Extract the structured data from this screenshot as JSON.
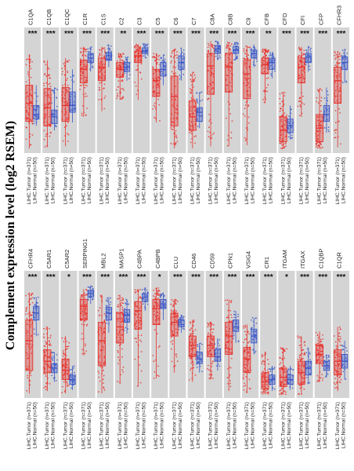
{
  "ylabel": "Complement expression level (log2 RSEM)",
  "colors": {
    "tumor": "#e8302a",
    "normal": "#3a57c8",
    "panel": "#d4d4d4"
  },
  "chart_data": {
    "type": "box",
    "ylabel": "Complement expression level (log2 RSEM)",
    "group_labels": [
      "LIHC.Tumor (n=371)",
      "LIHC.Normal (n=50)"
    ],
    "rows": [
      {
        "panels": [
          {
            "gene": "C1QA",
            "sig": "***",
            "tumor": [
              0.26,
              0.42,
              0.58,
              0.85,
              0.02
            ],
            "normal": [
              0.28,
              0.32,
              0.4,
              0.58,
              0.22
            ]
          },
          {
            "gene": "C1QB",
            "sig": "***",
            "tumor": [
              0.22,
              0.38,
              0.55,
              0.8,
              0.03
            ],
            "normal": [
              0.24,
              0.3,
              0.36,
              0.56,
              0.18
            ]
          },
          {
            "gene": "C1QC",
            "sig": "***",
            "tumor": [
              0.26,
              0.4,
              0.56,
              0.82,
              0.04
            ],
            "normal": [
              0.34,
              0.4,
              0.52,
              0.72,
              0.25
            ]
          },
          {
            "gene": "C1R",
            "sig": "***",
            "tumor": [
              0.6,
              0.72,
              0.8,
              0.92,
              0.3
            ],
            "normal": [
              0.78,
              0.82,
              0.86,
              0.92,
              0.7
            ]
          },
          {
            "gene": "C1S",
            "sig": "***",
            "tumor": [
              0.62,
              0.74,
              0.82,
              0.92,
              0.35
            ],
            "normal": [
              0.8,
              0.84,
              0.87,
              0.94,
              0.74
            ]
          },
          {
            "gene": "C2",
            "sig": "**",
            "tumor": [
              0.65,
              0.72,
              0.78,
              0.86,
              0.45
            ],
            "normal": [
              0.7,
              0.74,
              0.78,
              0.83,
              0.62
            ]
          },
          {
            "gene": "C3",
            "sig": "***",
            "tumor": [
              0.78,
              0.84,
              0.88,
              0.94,
              0.45
            ],
            "normal": [
              0.86,
              0.88,
              0.91,
              0.95,
              0.82
            ]
          },
          {
            "gene": "C5",
            "sig": "***",
            "tumor": [
              0.48,
              0.62,
              0.72,
              0.86,
              0.25
            ],
            "normal": [
              0.66,
              0.72,
              0.78,
              0.85,
              0.58
            ]
          },
          {
            "gene": "C6",
            "sig": "***",
            "tumor": [
              0.22,
              0.48,
              0.66,
              0.9,
              0.02
            ],
            "normal": [
              0.72,
              0.78,
              0.84,
              0.91,
              0.62
            ]
          },
          {
            "gene": "C7",
            "sig": "***",
            "tumor": [
              0.18,
              0.3,
              0.44,
              0.7,
              0.02
            ],
            "normal": [
              0.26,
              0.34,
              0.38,
              0.52,
              0.2
            ]
          },
          {
            "gene": "C8A",
            "sig": "***",
            "tumor": [
              0.5,
              0.75,
              0.86,
              0.97,
              0.04
            ],
            "normal": [
              0.86,
              0.9,
              0.93,
              0.97,
              0.8
            ]
          },
          {
            "gene": "C8B",
            "sig": "***",
            "tumor": [
              0.52,
              0.74,
              0.86,
              0.96,
              0.04
            ],
            "normal": [
              0.86,
              0.89,
              0.92,
              0.96,
              0.8
            ]
          },
          {
            "gene": "C9",
            "sig": "***",
            "tumor": [
              0.46,
              0.68,
              0.8,
              0.93,
              0.05
            ],
            "normal": [
              0.82,
              0.86,
              0.89,
              0.94,
              0.74
            ]
          },
          {
            "gene": "CFB",
            "sig": "**",
            "tumor": [
              0.68,
              0.76,
              0.82,
              0.9,
              0.42
            ],
            "normal": [
              0.72,
              0.78,
              0.82,
              0.87,
              0.64
            ]
          },
          {
            "gene": "CFD",
            "sig": "***",
            "tumor": [
              0.08,
              0.18,
              0.3,
              0.52,
              0.02
            ],
            "normal": [
              0.16,
              0.22,
              0.28,
              0.4,
              0.1
            ]
          },
          {
            "gene": "CFI",
            "sig": "***",
            "tumor": [
              0.6,
              0.74,
              0.82,
              0.92,
              0.3
            ],
            "normal": [
              0.78,
              0.83,
              0.86,
              0.92,
              0.7
            ]
          },
          {
            "gene": "CFP",
            "sig": "***",
            "tumor": [
              0.08,
              0.2,
              0.32,
              0.55,
              0.02
            ],
            "normal": [
              0.26,
              0.32,
              0.4,
              0.56,
              0.16
            ]
          },
          {
            "gene": "CFHR3",
            "sig": "***",
            "tumor": [
              0.42,
              0.62,
              0.74,
              0.88,
              0.03
            ],
            "normal": [
              0.72,
              0.78,
              0.83,
              0.9,
              0.6
            ]
          }
        ]
      },
      {
        "panels": [
          {
            "gene": "CFHR4",
            "sig": "***",
            "tumor": [
              0.22,
              0.48,
              0.66,
              0.9,
              0.02
            ],
            "normal": [
              0.66,
              0.72,
              0.78,
              0.86,
              0.52
            ]
          },
          {
            "gene": "C5AR1",
            "sig": "***",
            "tumor": [
              0.2,
              0.3,
              0.4,
              0.6,
              0.04
            ],
            "normal": [
              0.2,
              0.24,
              0.28,
              0.38,
              0.12
            ]
          },
          {
            "gene": "C5AR2",
            "sig": "*",
            "tumor": [
              0.14,
              0.22,
              0.32,
              0.52,
              0.02
            ],
            "normal": [
              0.1,
              0.14,
              0.18,
              0.26,
              0.05
            ]
          },
          {
            "gene": "SERPING1",
            "sig": "***",
            "tumor": [
              0.66,
              0.78,
              0.84,
              0.93,
              0.35
            ],
            "normal": [
              0.86,
              0.89,
              0.92,
              0.96,
              0.8
            ]
          },
          {
            "gene": "MBL2",
            "sig": "***",
            "tumor": [
              0.26,
              0.48,
              0.64,
              0.88,
              0.02
            ],
            "normal": [
              0.66,
              0.72,
              0.77,
              0.86,
              0.55
            ]
          },
          {
            "gene": "MASP1",
            "sig": "***",
            "tumor": [
              0.46,
              0.6,
              0.72,
              0.88,
              0.1
            ],
            "normal": [
              0.64,
              0.7,
              0.75,
              0.84,
              0.54
            ]
          },
          {
            "gene": "C4BPA",
            "sig": "***",
            "tumor": [
              0.58,
              0.74,
              0.82,
              0.93,
              0.08
            ],
            "normal": [
              0.82,
              0.86,
              0.89,
              0.94,
              0.74
            ]
          },
          {
            "gene": "C4BPB",
            "sig": "*",
            "tumor": [
              0.62,
              0.76,
              0.84,
              0.94,
              0.15
            ],
            "normal": [
              0.76,
              0.8,
              0.84,
              0.9,
              0.66
            ]
          },
          {
            "gene": "CLU",
            "sig": "***",
            "tumor": [
              0.52,
              0.64,
              0.72,
              0.84,
              0.2
            ],
            "normal": [
              0.6,
              0.62,
              0.66,
              0.7,
              0.55
            ]
          },
          {
            "gene": "CD46",
            "sig": "***",
            "tumor": [
              0.34,
              0.44,
              0.52,
              0.66,
              0.12
            ],
            "normal": [
              0.28,
              0.32,
              0.38,
              0.46,
              0.2
            ]
          },
          {
            "gene": "CD59",
            "sig": "***",
            "tumor": [
              0.34,
              0.44,
              0.52,
              0.64,
              0.14
            ],
            "normal": [
              0.3,
              0.34,
              0.4,
              0.5,
              0.22
            ]
          },
          {
            "gene": "CPN1",
            "sig": "***",
            "tumor": [
              0.36,
              0.52,
              0.64,
              0.84,
              0.04
            ],
            "normal": [
              0.56,
              0.6,
              0.66,
              0.74,
              0.46
            ]
          },
          {
            "gene": "VSIG4",
            "sig": "***",
            "tumor": [
              0.2,
              0.32,
              0.42,
              0.62,
              0.02
            ],
            "normal": [
              0.46,
              0.52,
              0.58,
              0.68,
              0.36
            ]
          },
          {
            "gene": "CR1",
            "sig": "***",
            "tumor": [
              0.06,
              0.12,
              0.2,
              0.38,
              0.01
            ],
            "normal": [
              0.1,
              0.14,
              0.18,
              0.26,
              0.04
            ]
          },
          {
            "gene": "ITGAM",
            "sig": "*",
            "tumor": [
              0.08,
              0.16,
              0.24,
              0.42,
              0.01
            ],
            "normal": [
              0.1,
              0.14,
              0.18,
              0.26,
              0.05
            ]
          },
          {
            "gene": "ITGAX",
            "sig": "***",
            "tumor": [
              0.1,
              0.2,
              0.3,
              0.52,
              0.01
            ],
            "normal": [
              0.18,
              0.24,
              0.3,
              0.42,
              0.1
            ]
          },
          {
            "gene": "C1QBP",
            "sig": "***",
            "tumor": [
              0.28,
              0.36,
              0.44,
              0.56,
              0.12
            ],
            "normal": [
              0.22,
              0.26,
              0.3,
              0.36,
              0.16
            ]
          },
          {
            "gene": "C1QR",
            "sig": "***",
            "tumor": [
              0.18,
              0.3,
              0.4,
              0.6,
              0.04
            ],
            "normal": [
              0.24,
              0.3,
              0.36,
              0.48,
              0.14
            ]
          }
        ]
      }
    ]
  }
}
